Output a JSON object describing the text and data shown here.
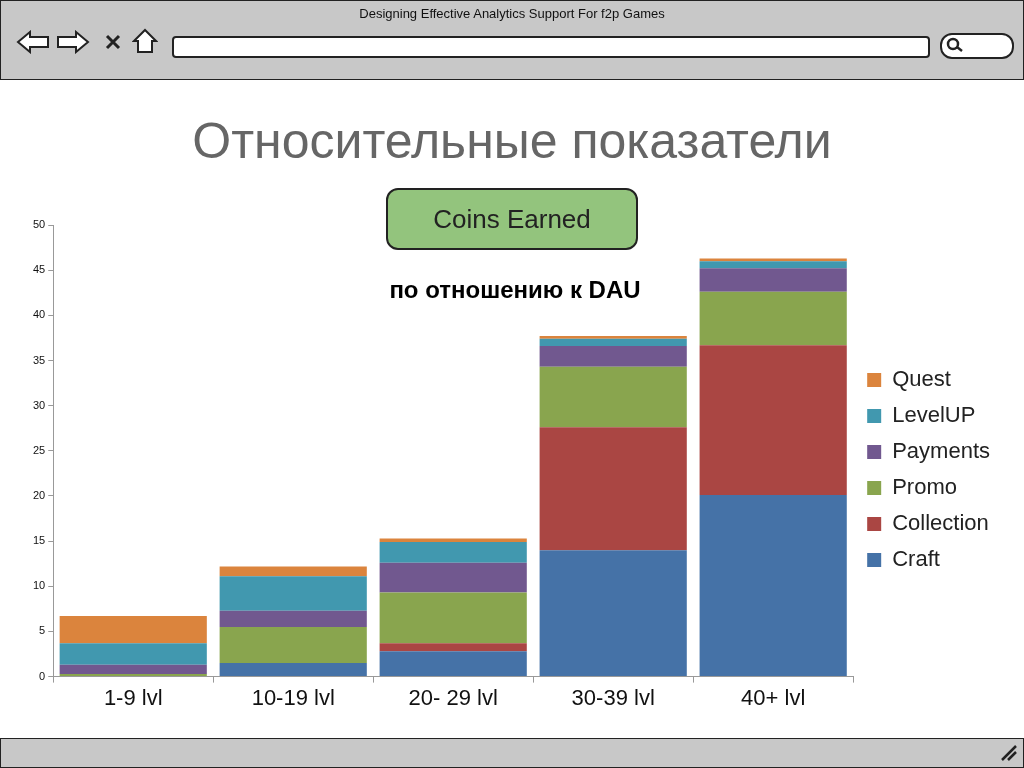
{
  "chart_data": {
    "type": "bar",
    "title": "Относительные показатели",
    "subtitle": "Coins Earned",
    "annotations": [
      "по отношению к DAU",
      "Designing Effective Analytics Support For f2p Games"
    ],
    "categories": [
      "1-9 lvl",
      "10-19 lvl",
      "20- 29 lvl",
      "30-39 lvl",
      "40+ lvl"
    ],
    "series": [
      {
        "name": "Craft",
        "color": "#4572a7",
        "values": [
          0,
          1.5,
          2.8,
          14.0,
          20.1
        ]
      },
      {
        "name": "Collection",
        "color": "#aa4643",
        "values": [
          0,
          0,
          0.9,
          13.6,
          16.6
        ]
      },
      {
        "name": "Promo",
        "color": "#89a54e",
        "values": [
          0.3,
          4.0,
          5.6,
          6.7,
          5.9
        ]
      },
      {
        "name": "Payments",
        "color": "#71588f",
        "values": [
          1.0,
          1.8,
          3.3,
          2.3,
          2.6
        ]
      },
      {
        "name": "LevelUP",
        "color": "#4198af",
        "values": [
          2.4,
          3.8,
          2.3,
          0.8,
          0.8
        ]
      },
      {
        "name": "Quest",
        "color": "#db843d",
        "values": [
          3.0,
          1.1,
          0.4,
          0.3,
          0.3
        ]
      }
    ],
    "stacked": true,
    "ylim": [
      0,
      50
    ],
    "yticks": [
      0,
      5,
      10,
      15,
      20,
      25,
      30,
      35,
      40,
      45,
      50
    ],
    "grid": false,
    "legend": "right"
  }
}
